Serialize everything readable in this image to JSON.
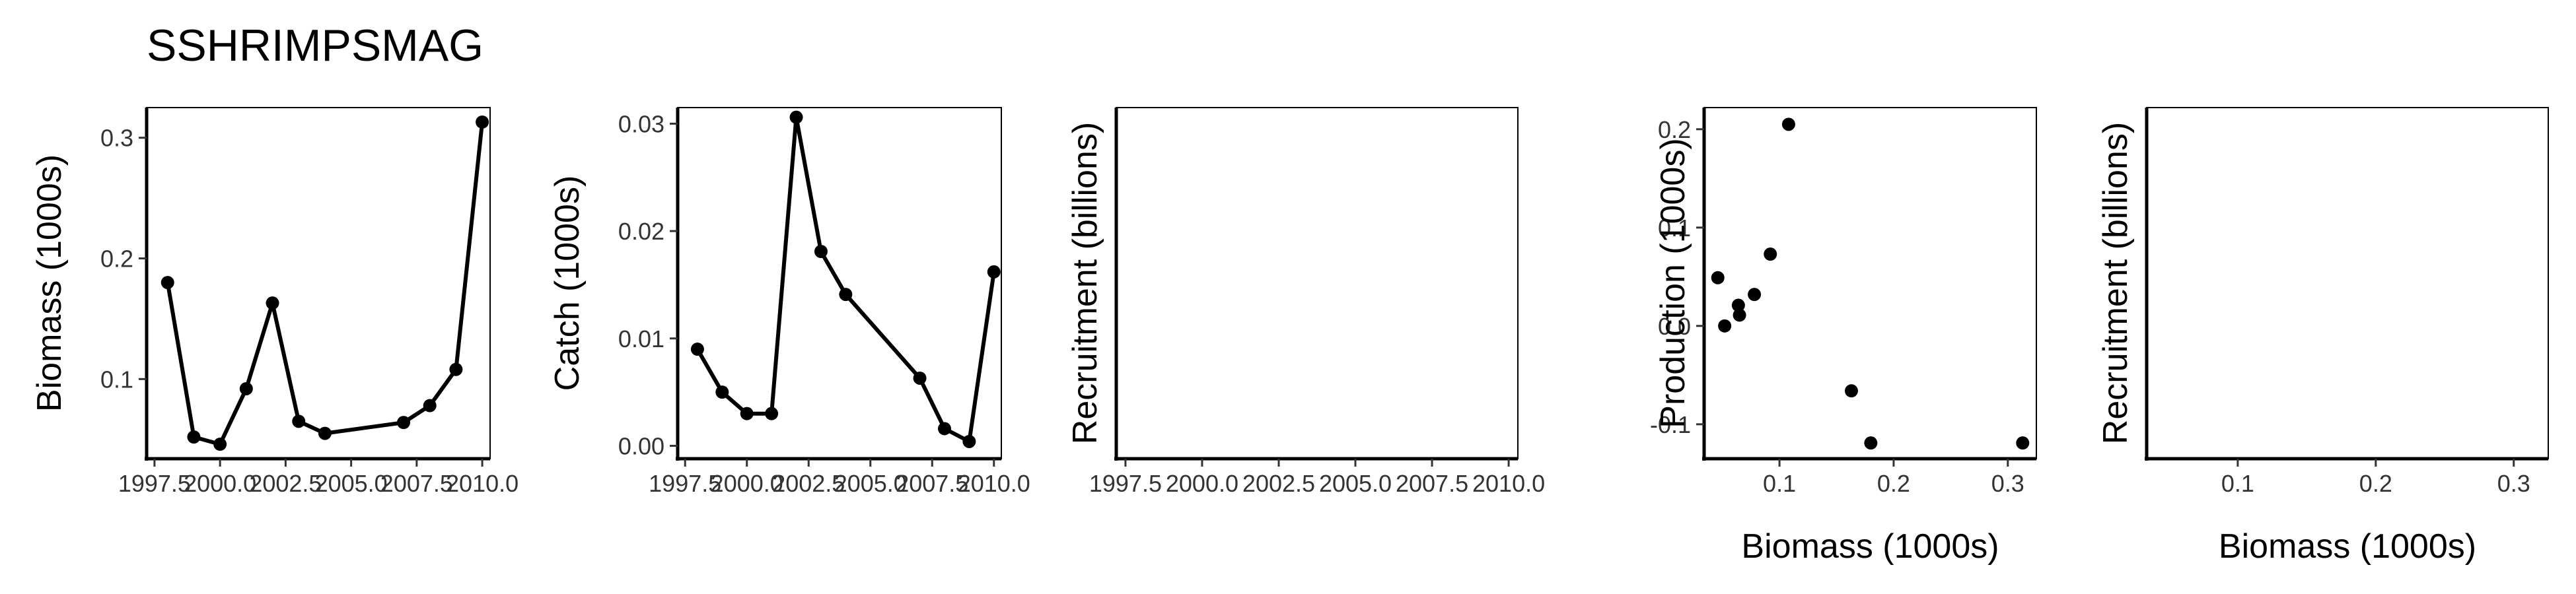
{
  "title": "SSHRIMPSMAG",
  "chart_data": [
    {
      "type": "line",
      "xlabel": "",
      "ylabel": "Biomass (1000s)",
      "xlim": [
        1997.2,
        2010.3
      ],
      "ylim": [
        0.034,
        0.325
      ],
      "xticks": [
        1997.5,
        2000.0,
        2002.5,
        2005.0,
        2007.5,
        2010.0
      ],
      "xtick_labels": [
        "1997.5",
        "2000.0",
        "2002.5",
        "2005.0",
        "2007.5",
        "2010.0"
      ],
      "yticks": [
        0.1,
        0.2,
        0.3
      ],
      "ytick_labels": [
        "0.1",
        "0.2",
        "0.3"
      ],
      "x": [
        1998,
        1999,
        2000,
        2001,
        2002,
        2003,
        2004,
        2007,
        2008,
        2009,
        2010
      ],
      "y": [
        0.18,
        0.052,
        0.046,
        0.092,
        0.163,
        0.065,
        0.055,
        0.064,
        0.078,
        0.108,
        0.313
      ]
    },
    {
      "type": "line",
      "xlabel": "",
      "ylabel": "Catch (1000s)",
      "xlim": [
        1997.2,
        2010.3
      ],
      "ylim": [
        -0.0012,
        0.0315
      ],
      "xticks": [
        1997.5,
        2000.0,
        2002.5,
        2005.0,
        2007.5,
        2010.0
      ],
      "xtick_labels": [
        "1997.5",
        "2000.0",
        "2002.5",
        "2005.0",
        "2007.5",
        "2010.0"
      ],
      "yticks": [
        0.0,
        0.01,
        0.02,
        0.03
      ],
      "ytick_labels": [
        "0.00",
        "0.01",
        "0.02",
        "0.03"
      ],
      "x": [
        1998,
        1999,
        2000,
        2001,
        2002,
        2003,
        2004,
        2007,
        2008,
        2009,
        2010
      ],
      "y": [
        0.009,
        0.005,
        0.003,
        0.003,
        0.0306,
        0.0181,
        0.0141,
        0.0063,
        0.0016,
        0.0004,
        0.0162
      ]
    },
    {
      "type": "line",
      "xlabel": "",
      "ylabel": "Recruitment (billions)",
      "xlim": [
        1997.2,
        2010.3
      ],
      "xticks": [
        1997.5,
        2000.0,
        2002.5,
        2005.0,
        2007.5,
        2010.0
      ],
      "xtick_labels": [
        "1997.5",
        "2000.0",
        "2002.5",
        "2005.0",
        "2007.5",
        "2010.0"
      ],
      "x": [],
      "y": []
    },
    {
      "type": "scatter",
      "xlabel": "Biomass (1000s)",
      "ylabel": "Production (1000s)",
      "xlim": [
        0.034,
        0.325
      ],
      "ylim": [
        -0.135,
        0.222
      ],
      "xticks": [
        0.1,
        0.2,
        0.3
      ],
      "xtick_labels": [
        "0.1",
        "0.2",
        "0.3"
      ],
      "yticks": [
        -0.1,
        0.0,
        0.1,
        0.2
      ],
      "ytick_labels": [
        "-0.1",
        "0.0",
        "0.1",
        "0.2"
      ],
      "x": [
        0.046,
        0.052,
        0.064,
        0.065,
        0.078,
        0.092,
        0.108,
        0.163,
        0.18,
        0.313
      ],
      "y": [
        0.049,
        0.0,
        0.021,
        0.011,
        0.032,
        0.073,
        0.205,
        -0.066,
        -0.119,
        -0.119
      ]
    },
    {
      "type": "scatter",
      "xlabel": "Biomass (1000s)",
      "ylabel": "Recruitment (billions)",
      "xlim": [
        0.034,
        0.325
      ],
      "xticks": [
        0.1,
        0.2,
        0.3
      ],
      "xtick_labels": [
        "0.1",
        "0.2",
        "0.3"
      ],
      "x": [],
      "y": []
    }
  ]
}
